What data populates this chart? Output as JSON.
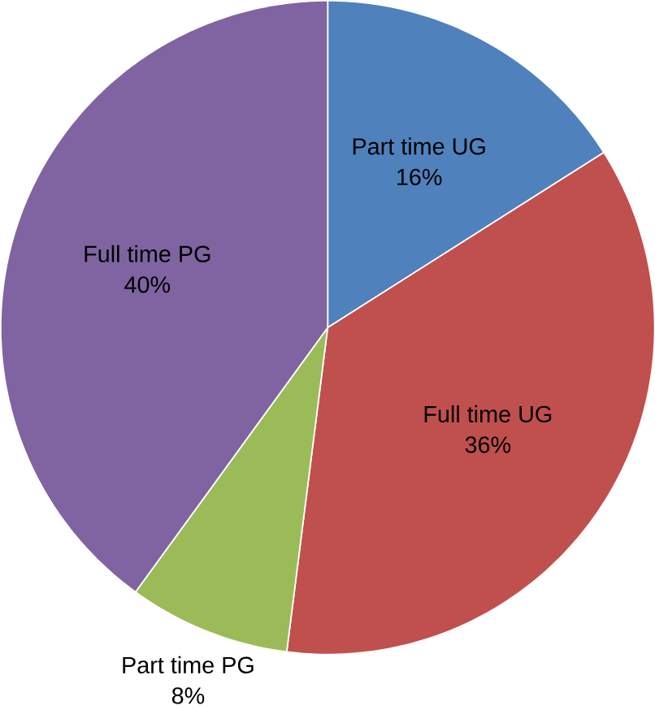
{
  "chart_data": {
    "type": "pie",
    "categories": [
      "Part time UG",
      "Full time UG",
      "Part time PG",
      "Full time PG"
    ],
    "values": [
      16,
      36,
      8,
      40
    ],
    "value_labels": [
      "16%",
      "36%",
      "8%",
      "40%"
    ],
    "colors": [
      "#4f81bd",
      "#c0504d",
      "#9bbb59",
      "#8064a2"
    ]
  }
}
